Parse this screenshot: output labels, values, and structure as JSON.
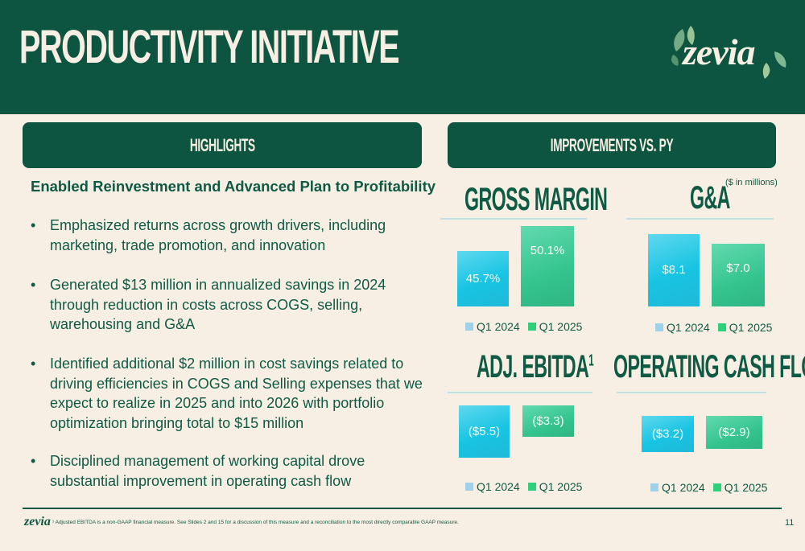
{
  "header": {
    "title": "PRODUCTIVITY INITIATIVE",
    "logo_text": "zevia"
  },
  "highlights": {
    "heading": "HIGHLIGHTS",
    "subheading": "Enabled Reinvestment and Advanced Plan to Profitability",
    "bullet_glyph": "•",
    "bullets": [
      "Emphasized returns across growth drivers, including marketing, trade promotion, and innovation",
      "Generated $13 million in annualized savings in 2024 through reduction in costs across COGS, selling, warehousing and G&A",
      "Identified additional $2 million in cost savings related to driving efficiencies in COGS and Selling expenses that we expect to realize in 2025 and into 2026 with portfolio optimization bringing total to $15 million",
      "Disciplined management of working capital drove substantial improvement in operating cash flow"
    ]
  },
  "improvements": {
    "heading": "IMPROVEMENTS VS. PY",
    "unit_note": "($ in millions)"
  },
  "colors": {
    "brand_green": "#0d5540",
    "q1_2024_bar": "#17c4e2",
    "q1_2025_bar": "#34c48e",
    "legend_2024": "#9fd1ea",
    "legend_2025": "#2ed07a",
    "background": "#f7efe3"
  },
  "chart_data": [
    {
      "type": "bar",
      "title": "GROSS MARGIN",
      "categories": [
        "Q1 2024",
        "Q1 2025"
      ],
      "values": [
        45.7,
        50.1
      ],
      "labels": [
        "45.7%",
        "50.1%"
      ],
      "legend": [
        "Q1 2024",
        "Q1 2025"
      ]
    },
    {
      "type": "bar",
      "title": "G&A",
      "categories": [
        "Q1 2024",
        "Q1 2025"
      ],
      "values": [
        8.1,
        7.0
      ],
      "labels": [
        "$8.1",
        "$7.0"
      ],
      "legend": [
        "Q1 2024",
        "Q1 2025"
      ]
    },
    {
      "type": "bar",
      "title": "ADJ. EBITDA",
      "title_superscript": "1",
      "categories": [
        "Q1 2024",
        "Q1 2025"
      ],
      "values": [
        -5.5,
        -3.3
      ],
      "labels": [
        "($5.5)",
        "($3.3)"
      ],
      "legend": [
        "Q1 2024",
        "Q1 2025"
      ]
    },
    {
      "type": "bar",
      "title": "OPERATING CASH FLOWS",
      "categories": [
        "Q1 2024",
        "Q1 2025"
      ],
      "values": [
        -3.2,
        -2.9
      ],
      "labels": [
        "($3.2)",
        "($2.9)"
      ],
      "legend": [
        "Q1 2024",
        "Q1 2025"
      ]
    }
  ],
  "footer": {
    "logo_text": "zevia",
    "footnote": "¹ Adjusted EBITDA is a non-GAAP financial measure. See Slides 2 and 15 for a discussion of this measure and a reconciliation to the most directly comparable GAAP measure.",
    "page_number": "11"
  }
}
